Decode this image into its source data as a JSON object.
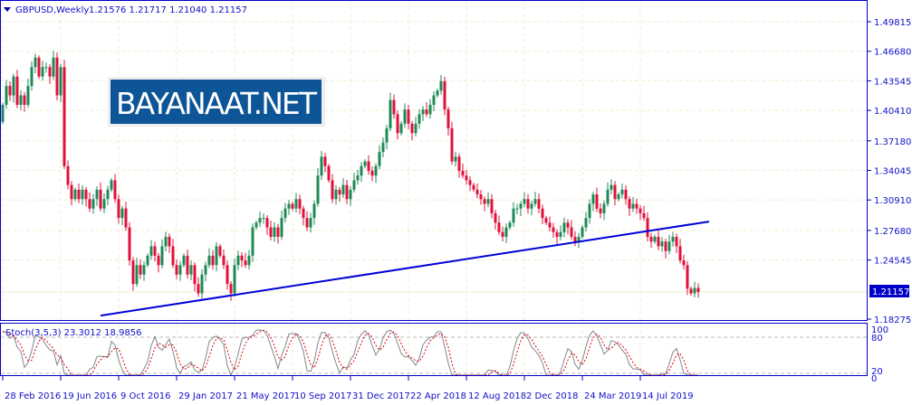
{
  "header": {
    "symbol": "GBPUSD,Weekly",
    "ohlc": "1.21576 1.21717 1.21040 1.21157"
  },
  "logo": {
    "text": "BAYANAAT.NET",
    "background": "#0d5596"
  },
  "indicator": {
    "label": "Stoch(3,5,3) 23.3012 18.9856",
    "levels": [
      "100",
      "80",
      "20",
      "0"
    ]
  },
  "colors": {
    "bull": "#1e8a57",
    "bear": "#e0103a",
    "axis": "#0000c8",
    "grid": "#efedcf",
    "trendline": "#0000d8",
    "stoch_main": "#7f8790",
    "stoch_signal": "#e00000"
  },
  "chart_data": {
    "type": "candlestick",
    "title": "GBPUSD,Weekly",
    "y_ticks": [
      "1.49815",
      "1.46680",
      "1.43545",
      "1.40410",
      "1.37180",
      "1.34045",
      "1.30910",
      "1.27680",
      "1.24545",
      "1.18275"
    ],
    "ylim": [
      1.18275,
      1.49815
    ],
    "current_price": "1.21157",
    "x_tick_labels": [
      "28 Feb 2016",
      "19 Jun 2016",
      "9 Oct 2016",
      "29 Jan 2017",
      "21 May 2017",
      "10 Sep 2017",
      "31 Dec 2017",
      "22 Apr 2018",
      "12 Aug 2018",
      "2 Dec 2018",
      "24 Mar 2019",
      "14 Jul 2019"
    ],
    "weeks_per_x_tick": 16,
    "first_open": 1.392,
    "weekly_closes": [
      1.41,
      1.43,
      1.42,
      1.44,
      1.41,
      1.42,
      1.41,
      1.43,
      1.45,
      1.46,
      1.44,
      1.45,
      1.45,
      1.44,
      1.46,
      1.42,
      1.45,
      1.345,
      1.325,
      1.31,
      1.32,
      1.31,
      1.32,
      1.31,
      1.3,
      1.31,
      1.32,
      1.3,
      1.31,
      1.32,
      1.33,
      1.31,
      1.29,
      1.3,
      1.28,
      1.245,
      1.22,
      1.24,
      1.23,
      1.24,
      1.25,
      1.26,
      1.25,
      1.24,
      1.26,
      1.27,
      1.26,
      1.24,
      1.23,
      1.24,
      1.25,
      1.23,
      1.24,
      1.22,
      1.21,
      1.23,
      1.24,
      1.25,
      1.24,
      1.26,
      1.25,
      1.24,
      1.22,
      1.21,
      1.24,
      1.25,
      1.245,
      1.24,
      1.25,
      1.28,
      1.285,
      1.29,
      1.29,
      1.28,
      1.27,
      1.28,
      1.27,
      1.29,
      1.3,
      1.305,
      1.3,
      1.31,
      1.3,
      1.29,
      1.28,
      1.29,
      1.305,
      1.335,
      1.355,
      1.345,
      1.33,
      1.31,
      1.32,
      1.315,
      1.325,
      1.31,
      1.32,
      1.33,
      1.335,
      1.345,
      1.35,
      1.34,
      1.335,
      1.345,
      1.36,
      1.37,
      1.385,
      1.415,
      1.4,
      1.38,
      1.39,
      1.405,
      1.39,
      1.38,
      1.39,
      1.4,
      1.405,
      1.4,
      1.41,
      1.42,
      1.425,
      1.435,
      1.405,
      1.385,
      1.35,
      1.355,
      1.34,
      1.335,
      1.33,
      1.325,
      1.32,
      1.315,
      1.31,
      1.305,
      1.31,
      1.295,
      1.285,
      1.275,
      1.27,
      1.28,
      1.285,
      1.3,
      1.3,
      1.305,
      1.31,
      1.3,
      1.305,
      1.31,
      1.3,
      1.29,
      1.285,
      1.28,
      1.275,
      1.27,
      1.275,
      1.285,
      1.28,
      1.27,
      1.265,
      1.27,
      1.28,
      1.29,
      1.305,
      1.315,
      1.3,
      1.295,
      1.305,
      1.32,
      1.325,
      1.31,
      1.315,
      1.32,
      1.31,
      1.3,
      1.305,
      1.3,
      1.295,
      1.29,
      1.27,
      1.265,
      1.27,
      1.26,
      1.265,
      1.255,
      1.265,
      1.27,
      1.26,
      1.245,
      1.24,
      1.215,
      1.21,
      1.21576,
      1.21157
    ],
    "wick_size": 0.006,
    "trendline": {
      "start_week": 27,
      "start_price": 1.1865,
      "end_week": 195,
      "end_price": 1.2862
    },
    "stochastic": {
      "k_period": 5,
      "slowing": 3,
      "d_period": 3,
      "main": 23.3012,
      "signal": 18.9856
    }
  }
}
